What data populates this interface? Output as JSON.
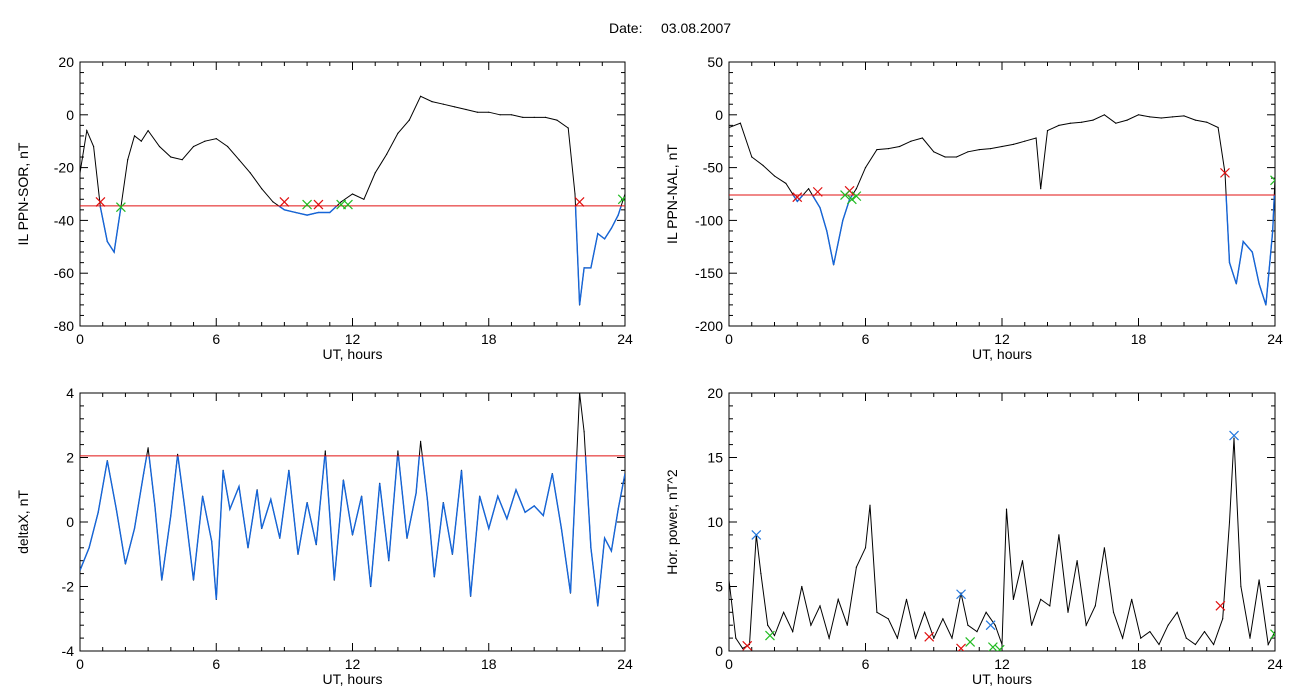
{
  "header": {
    "date_label": "Date:",
    "date_value": "03.08.2007"
  },
  "colors": {
    "trace": "#000000",
    "below_threshold": "#1565d8",
    "threshold": "#e01010",
    "marker_red": "#e01010",
    "marker_green": "#22bb22",
    "marker_blue": "#2277dd"
  },
  "chart_data": [
    {
      "type": "line",
      "ylabel": "IL PPN-SOR, nT",
      "xlabel": "UT, hours",
      "xlim": [
        0,
        24
      ],
      "ylim": [
        -80,
        20
      ],
      "xticks": [
        "0",
        "6",
        "12",
        "18",
        "24"
      ],
      "yticks": [
        "-80",
        "-60",
        "-40",
        "-20",
        "0",
        "20"
      ],
      "threshold": -34.5,
      "x": [
        0,
        0.3,
        0.6,
        0.9,
        1.2,
        1.5,
        1.8,
        2.1,
        2.4,
        2.7,
        3,
        3.5,
        4,
        4.5,
        5,
        5.5,
        6,
        6.5,
        7,
        7.5,
        8,
        8.5,
        9,
        9.5,
        10,
        10.5,
        11,
        11.5,
        12,
        12.5,
        13,
        13.5,
        14,
        14.5,
        15,
        15.5,
        16,
        16.5,
        17,
        17.5,
        18,
        18.5,
        19,
        19.5,
        20,
        20.5,
        21,
        21.5,
        21.8,
        22,
        22.2,
        22.5,
        22.8,
        23.1,
        23.4,
        23.7,
        24
      ],
      "y": [
        -22,
        -6,
        -12,
        -35,
        -48,
        -52,
        -35,
        -17,
        -8,
        -10,
        -6,
        -12,
        -16,
        -17,
        -12,
        -10,
        -9,
        -12,
        -17,
        -22,
        -28,
        -33,
        -36,
        -37,
        -38,
        -37,
        -37,
        -33,
        -30,
        -32,
        -22,
        -15,
        -7,
        -2,
        7,
        5,
        4,
        3,
        2,
        1,
        1,
        0,
        0,
        -1,
        -1,
        -1,
        -2,
        -5,
        -30,
        -72,
        -58,
        -58,
        -45,
        -47,
        -43,
        -38,
        -30
      ],
      "markers_red": [
        [
          0.9,
          -33
        ],
        [
          9.0,
          -33
        ],
        [
          10.5,
          -34
        ],
        [
          22.0,
          -33
        ]
      ],
      "markers_green": [
        [
          1.8,
          -35
        ],
        [
          10.0,
          -34
        ],
        [
          11.5,
          -34
        ],
        [
          11.8,
          -34
        ],
        [
          23.9,
          -32
        ]
      ]
    },
    {
      "type": "line",
      "ylabel": "IL PPN-NAL, nT",
      "xlabel": "UT, hours",
      "xlim": [
        0,
        24
      ],
      "ylim": [
        -200,
        50
      ],
      "xticks": [
        "0",
        "6",
        "12",
        "18",
        "24"
      ],
      "yticks": [
        "-200",
        "-150",
        "-100",
        "-50",
        "0",
        "50"
      ],
      "threshold": -76,
      "x": [
        0,
        0.5,
        1,
        1.5,
        2,
        2.5,
        3,
        3.5,
        4,
        4.3,
        4.6,
        5,
        5.3,
        5.6,
        6,
        6.5,
        7,
        7.5,
        8,
        8.5,
        9,
        9.5,
        10,
        10.5,
        11,
        11.5,
        12,
        12.5,
        13,
        13.5,
        13.7,
        14,
        14.5,
        15,
        15.5,
        16,
        16.5,
        17,
        17.5,
        18,
        18.5,
        19,
        19.5,
        20,
        20.5,
        21,
        21.5,
        21.8,
        22,
        22.3,
        22.6,
        23,
        23.3,
        23.6,
        23.9,
        24
      ],
      "y": [
        -12,
        -8,
        -40,
        -48,
        -58,
        -65,
        -82,
        -70,
        -88,
        -110,
        -142,
        -100,
        -80,
        -70,
        -50,
        -33,
        -32,
        -30,
        -25,
        -22,
        -35,
        -40,
        -40,
        -35,
        -33,
        -32,
        -30,
        -28,
        -25,
        -22,
        -70,
        -15,
        -10,
        -8,
        -7,
        -5,
        0,
        -8,
        -5,
        0,
        -2,
        -3,
        -2,
        -1,
        -5,
        -7,
        -12,
        -55,
        -140,
        -160,
        -120,
        -130,
        -160,
        -180,
        -110,
        -60
      ],
      "markers_red": [
        [
          3.0,
          -78
        ],
        [
          3.9,
          -73
        ],
        [
          5.3,
          -72
        ],
        [
          21.8,
          -55
        ]
      ],
      "markers_green": [
        [
          5.1,
          -76
        ],
        [
          5.4,
          -80
        ],
        [
          5.6,
          -77
        ],
        [
          24.0,
          -62
        ]
      ]
    },
    {
      "type": "line",
      "ylabel": "deltaX, nT",
      "xlabel": "UT, hours",
      "xlim": [
        0,
        24
      ],
      "ylim": [
        -4,
        4
      ],
      "xticks": [
        "0",
        "6",
        "12",
        "18",
        "24"
      ],
      "yticks": [
        "-4",
        "-2",
        "0",
        "2",
        "4"
      ],
      "threshold": 2.05,
      "x": [
        0,
        0.4,
        0.8,
        1.2,
        1.6,
        2,
        2.4,
        2.8,
        3,
        3.3,
        3.6,
        4,
        4.3,
        4.6,
        5,
        5.4,
        5.8,
        6,
        6.3,
        6.6,
        7,
        7.4,
        7.8,
        8,
        8.4,
        8.8,
        9.2,
        9.6,
        10,
        10.4,
        10.8,
        11.2,
        11.6,
        12,
        12.4,
        12.8,
        13.2,
        13.6,
        14,
        14.4,
        14.8,
        15,
        15.3,
        15.6,
        16,
        16.4,
        16.8,
        17.2,
        17.6,
        18,
        18.4,
        18.8,
        19.2,
        19.6,
        20,
        20.4,
        20.8,
        21.2,
        21.6,
        22,
        22.2,
        22.5,
        22.8,
        23.1,
        23.4,
        23.7,
        24
      ],
      "y": [
        -1.5,
        -0.8,
        0.3,
        1.9,
        0.4,
        -1.3,
        -0.2,
        1.5,
        2.3,
        0.5,
        -1.8,
        0.2,
        2.1,
        0.5,
        -1.8,
        0.8,
        -0.6,
        -2.4,
        1.6,
        0.4,
        1.1,
        -0.8,
        1.0,
        -0.2,
        0.7,
        -0.5,
        1.6,
        -1.0,
        0.6,
        -0.7,
        2.2,
        -1.8,
        1.3,
        -0.4,
        0.8,
        -2.0,
        1.2,
        -1.2,
        2.2,
        -0.5,
        0.9,
        2.5,
        0.7,
        -1.7,
        0.6,
        -1.0,
        1.6,
        -2.3,
        0.8,
        -0.2,
        0.8,
        0.1,
        1.0,
        0.3,
        0.5,
        0.2,
        1.5,
        -0.2,
        -2.2,
        4.0,
        2.8,
        -0.8,
        -2.6,
        -0.5,
        -0.9,
        0.4,
        1.5
      ],
      "markers_red": [],
      "markers_green": []
    },
    {
      "type": "line",
      "ylabel": "Hor. power, nT^2",
      "xlabel": "UT, hours",
      "xlim": [
        0,
        24
      ],
      "ylim": [
        0,
        20
      ],
      "xticks": [
        "0",
        "6",
        "12",
        "18",
        "24"
      ],
      "yticks": [
        "0",
        "5",
        "10",
        "15",
        "20"
      ],
      "threshold": null,
      "x": [
        0,
        0.3,
        0.6,
        0.9,
        1.2,
        1.4,
        1.7,
        2,
        2.4,
        2.8,
        3.2,
        3.6,
        4,
        4.4,
        4.8,
        5.2,
        5.6,
        6,
        6.2,
        6.5,
        7,
        7.4,
        7.8,
        8.2,
        8.6,
        9,
        9.4,
        9.8,
        10.2,
        10.5,
        10.9,
        11.3,
        11.7,
        12,
        12.2,
        12.5,
        12.9,
        13.3,
        13.7,
        14.1,
        14.5,
        14.9,
        15.3,
        15.7,
        16.1,
        16.5,
        16.9,
        17.3,
        17.7,
        18.1,
        18.5,
        18.9,
        19.3,
        19.7,
        20.1,
        20.5,
        20.9,
        21.3,
        21.7,
        22,
        22.2,
        22.5,
        22.9,
        23.3,
        23.7,
        24
      ],
      "y": [
        5.5,
        1.0,
        0.2,
        0.5,
        9.0,
        6.0,
        2.0,
        1.2,
        3.0,
        1.5,
        5.0,
        2.0,
        3.5,
        1.0,
        4.0,
        2.0,
        6.5,
        8.0,
        11.3,
        3.0,
        2.5,
        1.0,
        4.0,
        1.0,
        3.0,
        1.0,
        2.5,
        1.0,
        4.5,
        2.0,
        1.5,
        3.0,
        2.0,
        0.5,
        11.0,
        4.0,
        7.0,
        2.0,
        4.0,
        3.5,
        9.0,
        3.0,
        7.0,
        2.0,
        3.5,
        8.0,
        3.0,
        1.0,
        4.0,
        1.0,
        1.5,
        0.5,
        2.0,
        3.0,
        1.0,
        0.5,
        1.5,
        0.5,
        2.5,
        10.0,
        16.5,
        5.0,
        1.0,
        5.5,
        0.5,
        1.5
      ],
      "markers_red": [
        [
          0.8,
          0.4
        ],
        [
          8.8,
          1.1
        ],
        [
          10.2,
          0.2
        ],
        [
          21.6,
          3.5
        ]
      ],
      "markers_green": [
        [
          1.8,
          1.2
        ],
        [
          10.6,
          0.7
        ],
        [
          11.6,
          0.3
        ],
        [
          11.9,
          0.1
        ],
        [
          24.0,
          1.3
        ]
      ],
      "markers_blue": [
        [
          1.2,
          9.0
        ],
        [
          10.2,
          4.4
        ],
        [
          11.5,
          2.0
        ],
        [
          22.2,
          16.7
        ]
      ]
    }
  ]
}
